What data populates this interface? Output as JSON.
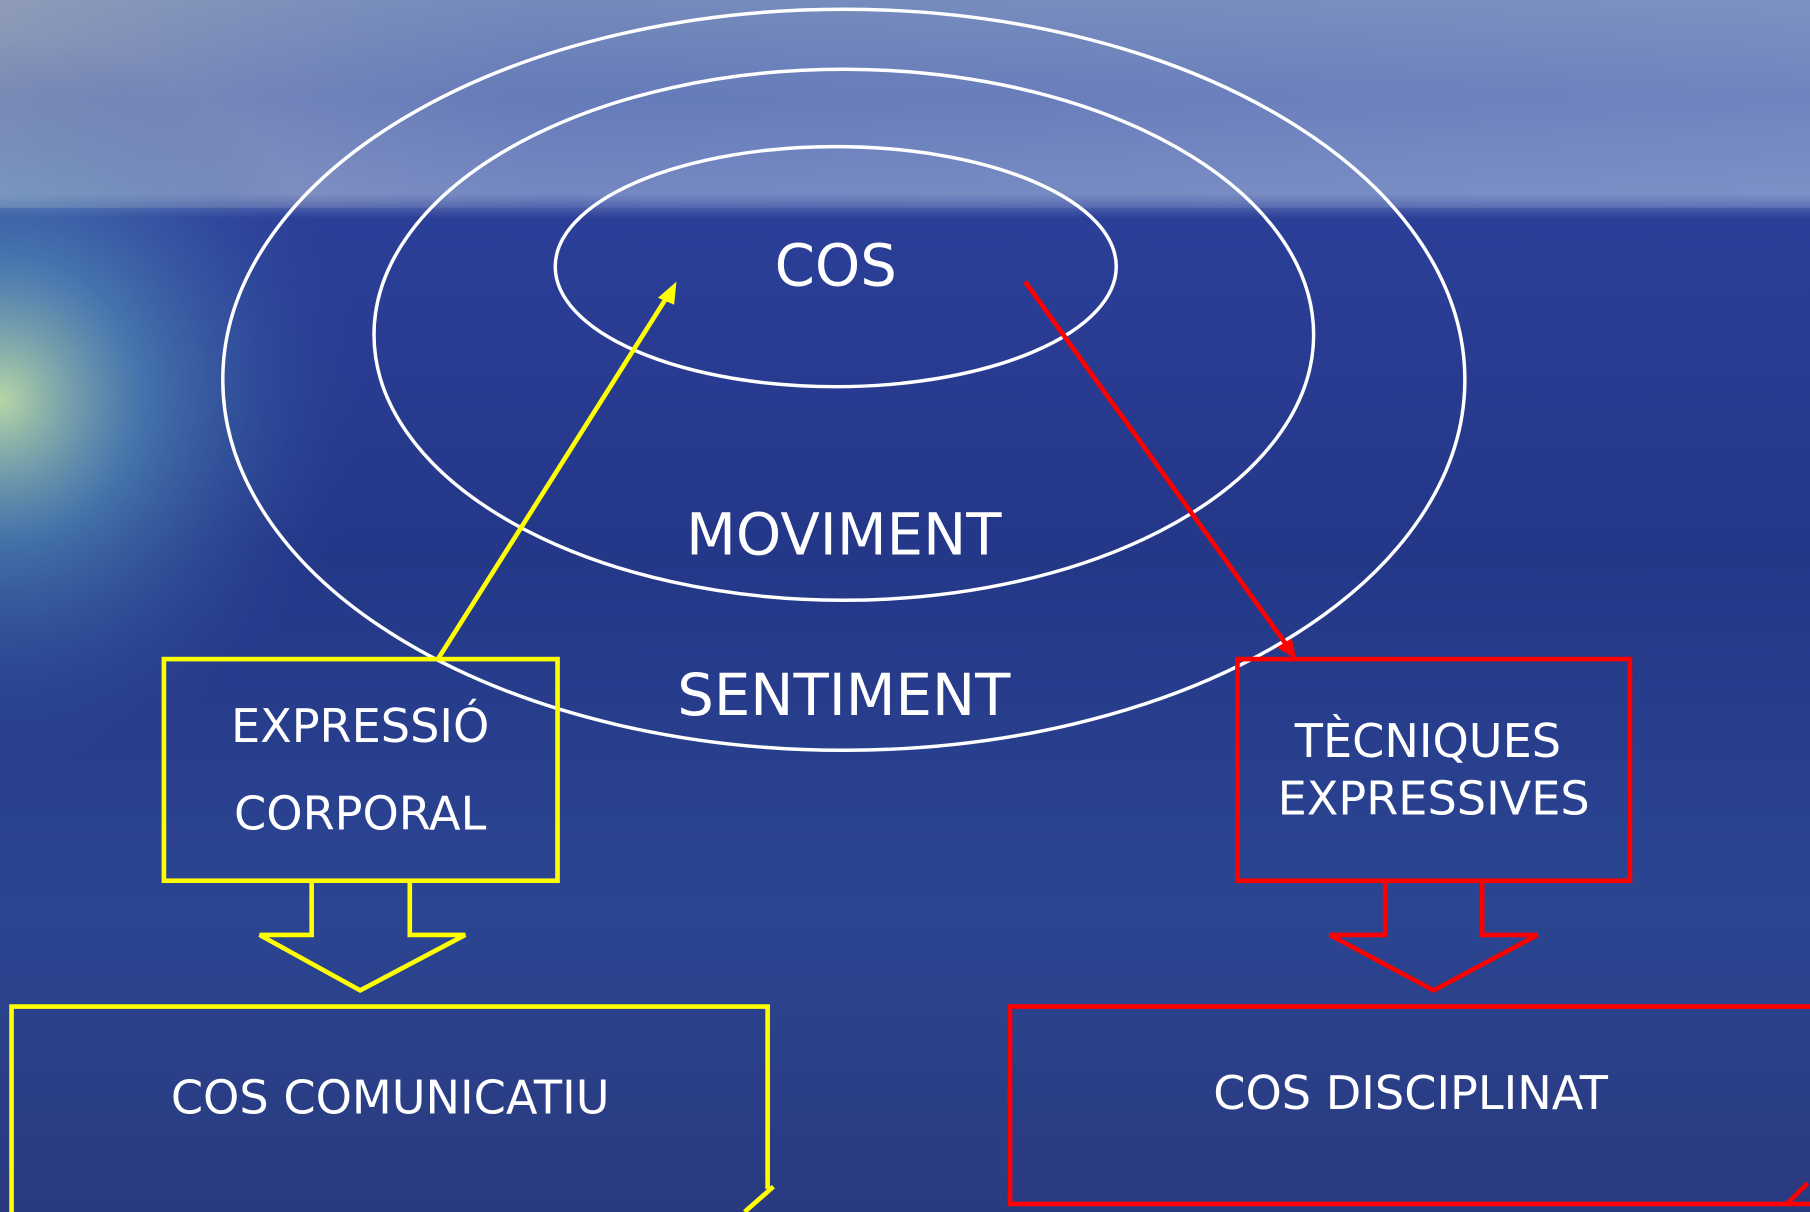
{
  "rings": {
    "inner": "COS",
    "middle": "MOVIMENT",
    "outer": "SENTIMENT"
  },
  "left": {
    "box": [
      "EXPRESSIÓ",
      "CORPORAL"
    ],
    "result": "COS COMUNICATIU"
  },
  "right": {
    "box": [
      "TÈCNIQUES",
      "EXPRESSIVES"
    ],
    "result": "COS DISCIPLINAT"
  }
}
